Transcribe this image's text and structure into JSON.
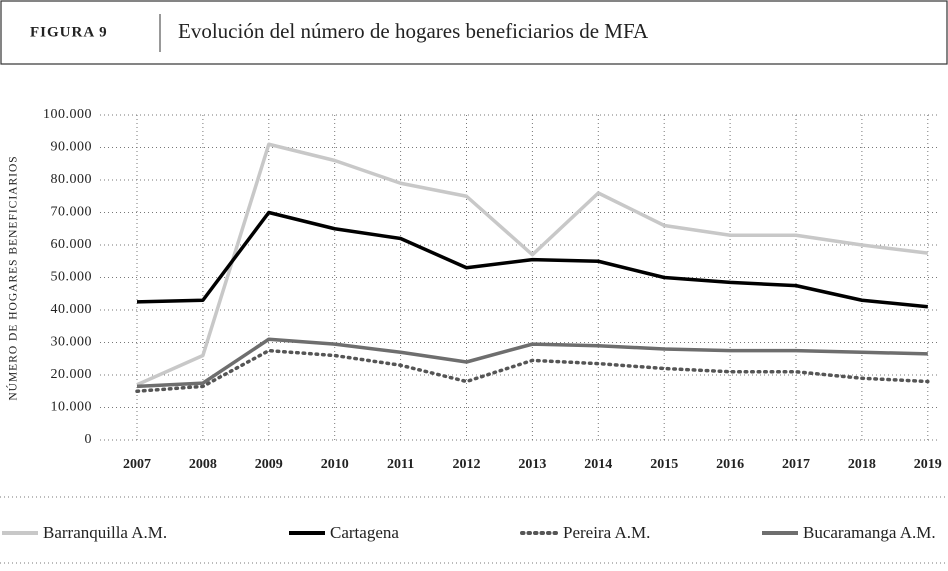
{
  "chart_data": {
    "type": "line",
    "figure_label": "FIGURA 9",
    "title": "Evolución del número de hogares beneficiarios de MFA",
    "y_label": "NÚMERO DE HOGARES BENEFICIARIOS",
    "categories": [
      "2007",
      "2008",
      "2009",
      "2010",
      "2011",
      "2012",
      "2013",
      "2014",
      "2015",
      "2016",
      "2017",
      "2018",
      "2019"
    ],
    "series": [
      {
        "name": "Barranquilla A.M.",
        "color": "#c8c8c8",
        "dash": "solid",
        "values": [
          17000,
          26000,
          91000,
          86000,
          79000,
          75000,
          57000,
          76000,
          66000,
          63000,
          63000,
          60000,
          57500
        ]
      },
      {
        "name": "Cartagena",
        "color": "#000000",
        "dash": "solid",
        "values": [
          42500,
          43000,
          70000,
          65000,
          62000,
          53000,
          55500,
          55000,
          50000,
          48500,
          47500,
          43000,
          41000
        ]
      },
      {
        "name": "Pereira A.M.",
        "color": "#555555",
        "dash": "dotted",
        "values": [
          15000,
          16500,
          27500,
          26000,
          23000,
          18000,
          24500,
          23500,
          22000,
          21000,
          21000,
          19000,
          18000
        ]
      },
      {
        "name": "Bucaramanga A.M.",
        "color": "#6e6e6e",
        "dash": "solid",
        "values": [
          16500,
          17500,
          31000,
          29500,
          27000,
          24000,
          29500,
          29000,
          28000,
          27500,
          27500,
          27000,
          26500
        ]
      }
    ],
    "ylim": [
      0,
      100000
    ],
    "yticks": [
      0,
      {
        "value": 10000,
        "label": "10.000"
      },
      {
        "value": 20000,
        "label": "20.000"
      },
      {
        "value": 30000,
        "label": "30.000"
      },
      {
        "value": 40000,
        "label": "40.000"
      },
      {
        "value": 50000,
        "label": "50.000"
      },
      {
        "value": 60000,
        "label": "60.000"
      },
      {
        "value": 70000,
        "label": "70.000"
      },
      {
        "value": 80000,
        "label": "80.000"
      },
      {
        "value": 90000,
        "label": "90.000"
      },
      {
        "value": 100000,
        "label": "100.000"
      }
    ],
    "grid": true,
    "legend": "bottom"
  }
}
